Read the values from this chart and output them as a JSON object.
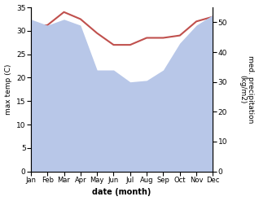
{
  "months": [
    "Jan",
    "Feb",
    "Mar",
    "Apr",
    "May",
    "Jun",
    "Jul",
    "Aug",
    "Sep",
    "Oct",
    "Nov",
    "Dec"
  ],
  "temp": [
    31.0,
    31.2,
    34.0,
    32.5,
    29.5,
    27.0,
    27.0,
    28.5,
    28.5,
    29.0,
    32.0,
    33.0
  ],
  "precip": [
    51.0,
    49.0,
    51.0,
    49.0,
    34.0,
    34.0,
    30.0,
    30.5,
    34.0,
    43.0,
    49.0,
    52.5
  ],
  "temp_color": "#c0504d",
  "precip_color": "#b8c7e8",
  "ylabel_left": "max temp (C)",
  "ylabel_right": "med. precipitation\n(kg/m2)",
  "xlabel": "date (month)",
  "ylim_left": [
    0,
    35
  ],
  "ylim_right": [
    0,
    55
  ],
  "yticks_left": [
    0,
    5,
    10,
    15,
    20,
    25,
    30,
    35
  ],
  "yticks_right": [
    0,
    10,
    20,
    30,
    40,
    50
  ],
  "background_color": "#ffffff",
  "fig_width": 3.18,
  "fig_height": 2.47,
  "dpi": 100
}
